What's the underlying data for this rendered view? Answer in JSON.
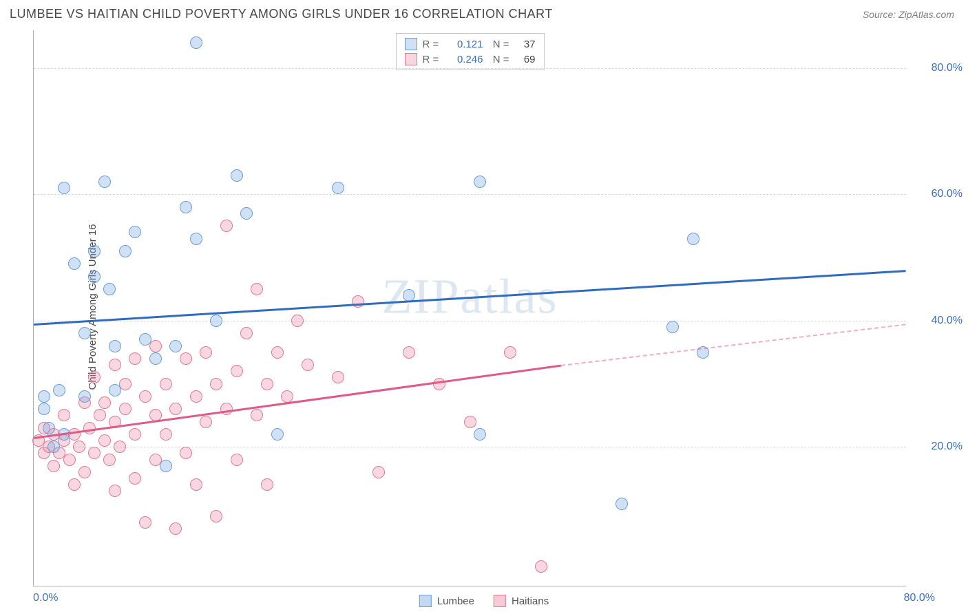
{
  "header": {
    "title": "LUMBEE VS HAITIAN CHILD POVERTY AMONG GIRLS UNDER 16 CORRELATION CHART",
    "source": "Source: ZipAtlas.com"
  },
  "watermark": "ZIPatlas",
  "chart": {
    "type": "scatter",
    "background_color": "#ffffff",
    "grid_color": "#d8d8d8",
    "axis_color": "#b0b0b0",
    "y_axis_label": "Child Poverty Among Girls Under 16",
    "label_fontsize": 15,
    "tick_fontsize": 16,
    "tick_color": "#3b6fb6",
    "xlim": [
      0,
      86
    ],
    "ylim": [
      -2,
      86
    ],
    "x_ticks": [
      {
        "value": 0,
        "label": "0.0%"
      },
      {
        "value": 80,
        "label": "80.0%"
      }
    ],
    "y_ticks": [
      {
        "value": 20,
        "label": "20.0%"
      },
      {
        "value": 40,
        "label": "40.0%"
      },
      {
        "value": 60,
        "label": "60.0%"
      },
      {
        "value": 80,
        "label": "80.0%"
      }
    ],
    "marker_radius": 9,
    "marker_border_width": 1.5,
    "series": [
      {
        "name": "Lumbee",
        "fill_color": "rgba(120,170,225,0.35)",
        "border_color": "#6a9ed4",
        "trend_color": "#2f6cc0",
        "trend_width": 3,
        "trend": {
          "x1": 0,
          "y1": 39.5,
          "x2": 86,
          "y2": 48.0
        },
        "r_value": "0.121",
        "n_value": "37",
        "points": [
          {
            "x": 1,
            "y": 28
          },
          {
            "x": 1,
            "y": 26
          },
          {
            "x": 1.5,
            "y": 23
          },
          {
            "x": 2,
            "y": 20
          },
          {
            "x": 2.5,
            "y": 29
          },
          {
            "x": 3,
            "y": 22
          },
          {
            "x": 3,
            "y": 61
          },
          {
            "x": 4,
            "y": 49
          },
          {
            "x": 5,
            "y": 38
          },
          {
            "x": 5,
            "y": 28
          },
          {
            "x": 6,
            "y": 47
          },
          {
            "x": 6,
            "y": 51
          },
          {
            "x": 7,
            "y": 62
          },
          {
            "x": 7.5,
            "y": 45
          },
          {
            "x": 8,
            "y": 36
          },
          {
            "x": 8,
            "y": 29
          },
          {
            "x": 9,
            "y": 51
          },
          {
            "x": 10,
            "y": 54
          },
          {
            "x": 11,
            "y": 37
          },
          {
            "x": 12,
            "y": 34
          },
          {
            "x": 13,
            "y": 17
          },
          {
            "x": 14,
            "y": 36
          },
          {
            "x": 15,
            "y": 58
          },
          {
            "x": 16,
            "y": 84
          },
          {
            "x": 16,
            "y": 53
          },
          {
            "x": 18,
            "y": 40
          },
          {
            "x": 20,
            "y": 63
          },
          {
            "x": 21,
            "y": 57
          },
          {
            "x": 24,
            "y": 22
          },
          {
            "x": 30,
            "y": 61
          },
          {
            "x": 37,
            "y": 44
          },
          {
            "x": 44,
            "y": 62
          },
          {
            "x": 44,
            "y": 22
          },
          {
            "x": 58,
            "y": 11
          },
          {
            "x": 63,
            "y": 39
          },
          {
            "x": 65,
            "y": 53
          },
          {
            "x": 66,
            "y": 35
          }
        ]
      },
      {
        "name": "Haitians",
        "fill_color": "rgba(235,140,165,0.35)",
        "border_color": "#dd7a98",
        "trend_color": "#e05a85",
        "trend_dash_color": "rgba(224,90,133,0.5)",
        "trend_width": 3,
        "trend": {
          "x1": 0,
          "y1": 21.5,
          "x2": 52,
          "y2": 33.0
        },
        "trend_dash": {
          "x1": 52,
          "y1": 33.0,
          "x2": 86,
          "y2": 39.5
        },
        "r_value": "0.246",
        "n_value": "69",
        "points": [
          {
            "x": 0.5,
            "y": 21
          },
          {
            "x": 1,
            "y": 19
          },
          {
            "x": 1,
            "y": 23
          },
          {
            "x": 1.5,
            "y": 20
          },
          {
            "x": 2,
            "y": 22
          },
          {
            "x": 2,
            "y": 17
          },
          {
            "x": 2.5,
            "y": 19
          },
          {
            "x": 3,
            "y": 21
          },
          {
            "x": 3,
            "y": 25
          },
          {
            "x": 3.5,
            "y": 18
          },
          {
            "x": 4,
            "y": 22
          },
          {
            "x": 4,
            "y": 14
          },
          {
            "x": 4.5,
            "y": 20
          },
          {
            "x": 5,
            "y": 27
          },
          {
            "x": 5,
            "y": 16
          },
          {
            "x": 5.5,
            "y": 23
          },
          {
            "x": 6,
            "y": 19
          },
          {
            "x": 6,
            "y": 31
          },
          {
            "x": 6.5,
            "y": 25
          },
          {
            "x": 7,
            "y": 21
          },
          {
            "x": 7,
            "y": 27
          },
          {
            "x": 7.5,
            "y": 18
          },
          {
            "x": 8,
            "y": 24
          },
          {
            "x": 8,
            "y": 33
          },
          {
            "x": 8,
            "y": 13
          },
          {
            "x": 8.5,
            "y": 20
          },
          {
            "x": 9,
            "y": 26
          },
          {
            "x": 9,
            "y": 30
          },
          {
            "x": 10,
            "y": 22
          },
          {
            "x": 10,
            "y": 15
          },
          {
            "x": 10,
            "y": 34
          },
          {
            "x": 11,
            "y": 28
          },
          {
            "x": 11,
            "y": 8
          },
          {
            "x": 12,
            "y": 25
          },
          {
            "x": 12,
            "y": 18
          },
          {
            "x": 12,
            "y": 36
          },
          {
            "x": 13,
            "y": 30
          },
          {
            "x": 13,
            "y": 22
          },
          {
            "x": 14,
            "y": 26
          },
          {
            "x": 14,
            "y": 7
          },
          {
            "x": 15,
            "y": 34
          },
          {
            "x": 15,
            "y": 19
          },
          {
            "x": 16,
            "y": 28
          },
          {
            "x": 16,
            "y": 14
          },
          {
            "x": 17,
            "y": 24
          },
          {
            "x": 17,
            "y": 35
          },
          {
            "x": 18,
            "y": 30
          },
          {
            "x": 18,
            "y": 9
          },
          {
            "x": 19,
            "y": 26
          },
          {
            "x": 19,
            "y": 55
          },
          {
            "x": 20,
            "y": 32
          },
          {
            "x": 20,
            "y": 18
          },
          {
            "x": 21,
            "y": 38
          },
          {
            "x": 22,
            "y": 25
          },
          {
            "x": 22,
            "y": 45
          },
          {
            "x": 23,
            "y": 30
          },
          {
            "x": 23,
            "y": 14
          },
          {
            "x": 24,
            "y": 35
          },
          {
            "x": 25,
            "y": 28
          },
          {
            "x": 26,
            "y": 40
          },
          {
            "x": 27,
            "y": 33
          },
          {
            "x": 30,
            "y": 31
          },
          {
            "x": 32,
            "y": 43
          },
          {
            "x": 34,
            "y": 16
          },
          {
            "x": 37,
            "y": 35
          },
          {
            "x": 40,
            "y": 30
          },
          {
            "x": 43,
            "y": 24
          },
          {
            "x": 47,
            "y": 35
          },
          {
            "x": 50,
            "y": 1
          }
        ]
      }
    ]
  },
  "legend_top_labels": {
    "r": "R =",
    "n": "N ="
  },
  "legend_bottom": [
    {
      "label": "Lumbee",
      "fill": "rgba(120,170,225,0.45)",
      "border": "#6a9ed4"
    },
    {
      "label": "Haitians",
      "fill": "rgba(235,140,165,0.45)",
      "border": "#dd7a98"
    }
  ]
}
